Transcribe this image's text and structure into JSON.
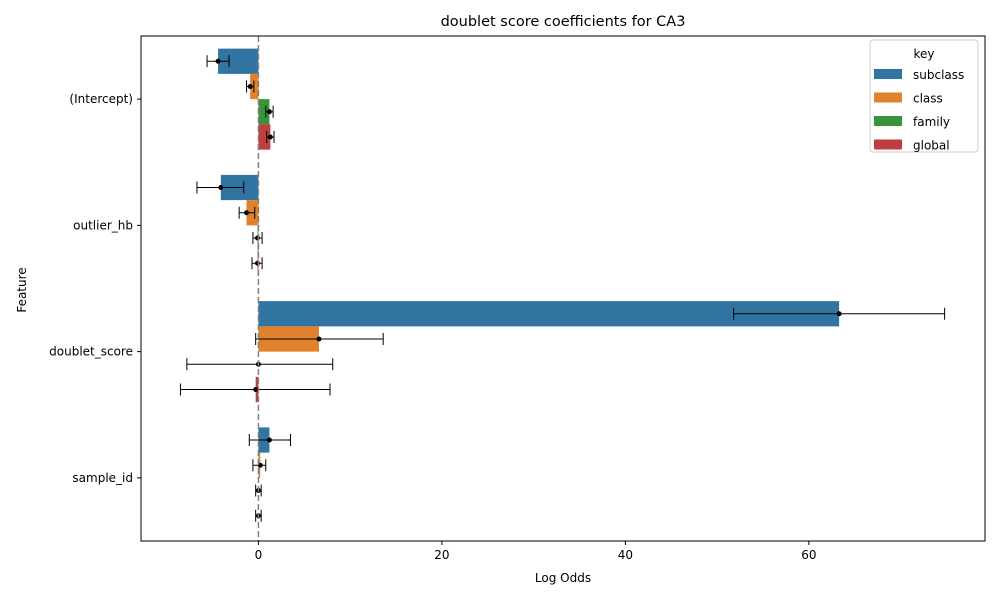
{
  "chart_data": {
    "type": "bar",
    "orientation": "horizontal",
    "title": "doublet score coefficients for CA3",
    "xlabel": "Log Odds",
    "ylabel": "Feature",
    "xlim": [
      -12.8,
      79.2
    ],
    "xticks": [
      0,
      20,
      40,
      60
    ],
    "categories": [
      "(Intercept)",
      "outlier_hb",
      "doublet_score",
      "sample_id"
    ],
    "legend": {
      "title": "key",
      "position": "top-right"
    },
    "reference_line": {
      "x": 0,
      "style": "dashed",
      "color": "#808080"
    },
    "series": [
      {
        "name": "subclass",
        "color": "#3274a1",
        "values": [
          -4.4,
          -4.1,
          63.3,
          1.2
        ],
        "error_low": [
          -5.6,
          -6.7,
          51.8,
          -1.0
        ],
        "error_high": [
          -3.2,
          -1.6,
          74.8,
          3.5
        ]
      },
      {
        "name": "class",
        "color": "#e1812c",
        "values": [
          -0.9,
          -1.3,
          6.6,
          0.2
        ],
        "error_low": [
          -1.3,
          -2.1,
          -0.3,
          -0.6
        ],
        "error_high": [
          -0.5,
          -0.4,
          13.6,
          0.8
        ]
      },
      {
        "name": "family",
        "color": "#3a923a",
        "values": [
          1.2,
          -0.1,
          0.0,
          0.0
        ],
        "error_low": [
          0.8,
          -0.6,
          -7.8,
          -0.3
        ],
        "error_high": [
          1.6,
          0.4,
          8.1,
          0.3
        ]
      },
      {
        "name": "global",
        "color": "#c03d3e",
        "values": [
          1.3,
          -0.1,
          -0.3,
          0.0
        ],
        "error_low": [
          0.9,
          -0.7,
          -8.5,
          -0.3
        ],
        "error_high": [
          1.7,
          0.4,
          7.8,
          0.3
        ]
      }
    ]
  }
}
